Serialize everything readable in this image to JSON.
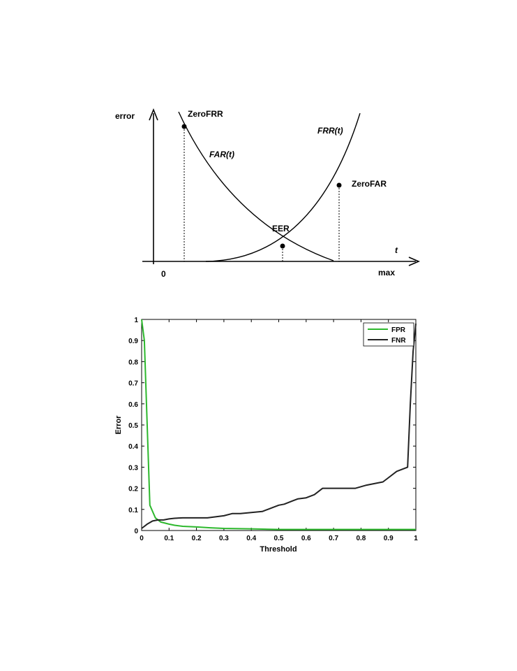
{
  "colors": {
    "fpr": "#2db82d",
    "fnr": "#222222"
  },
  "diagram": {
    "y_axis_label": "error",
    "x_axis_label": "t",
    "origin_label": "0",
    "max_label": "max",
    "far_label": "FAR(t)",
    "frr_label": "FRR(t)",
    "zerofrr_label": "ZeroFRR",
    "zerofar_label": "ZeroFAR",
    "eer_label": "EER"
  },
  "chart_data": {
    "type": "line",
    "title": "",
    "xlabel": "Threshold",
    "ylabel": "Error",
    "xlim": [
      0,
      1
    ],
    "ylim": [
      0,
      1
    ],
    "xticks": [
      "0",
      "0.1",
      "0.2",
      "0.3",
      "0.4",
      "0.5",
      "0.6",
      "0.7",
      "0.8",
      "0.9",
      "1"
    ],
    "yticks": [
      "0",
      "0.1",
      "0.2",
      "0.3",
      "0.4",
      "0.5",
      "0.6",
      "0.7",
      "0.8",
      "0.9",
      "1"
    ],
    "legend_position": "top-right",
    "series": [
      {
        "name": "FPR",
        "x": [
          0,
          0.01,
          0.03,
          0.05,
          0.07,
          0.1,
          0.12,
          0.15,
          0.2,
          0.25,
          0.3,
          0.4,
          0.5,
          0.6,
          0.7,
          0.8,
          0.9,
          1.0
        ],
        "y": [
          1.0,
          0.9,
          0.12,
          0.06,
          0.04,
          0.03,
          0.025,
          0.02,
          0.017,
          0.013,
          0.01,
          0.008,
          0.005,
          0.005,
          0.005,
          0.005,
          0.005,
          0.005
        ]
      },
      {
        "name": "FNR",
        "x": [
          0,
          0.02,
          0.04,
          0.06,
          0.08,
          0.1,
          0.12,
          0.15,
          0.2,
          0.24,
          0.27,
          0.3,
          0.33,
          0.36,
          0.4,
          0.44,
          0.46,
          0.48,
          0.5,
          0.52,
          0.55,
          0.57,
          0.6,
          0.63,
          0.66,
          0.7,
          0.75,
          0.78,
          0.82,
          0.86,
          0.88,
          0.9,
          0.93,
          0.95,
          0.97,
          0.98,
          0.99,
          1.0
        ],
        "y": [
          0.01,
          0.03,
          0.045,
          0.05,
          0.05,
          0.055,
          0.058,
          0.06,
          0.06,
          0.06,
          0.065,
          0.07,
          0.08,
          0.08,
          0.085,
          0.09,
          0.1,
          0.11,
          0.12,
          0.125,
          0.14,
          0.15,
          0.155,
          0.17,
          0.2,
          0.2,
          0.2,
          0.2,
          0.215,
          0.225,
          0.23,
          0.25,
          0.28,
          0.29,
          0.3,
          0.6,
          0.85,
          0.98
        ]
      }
    ]
  }
}
